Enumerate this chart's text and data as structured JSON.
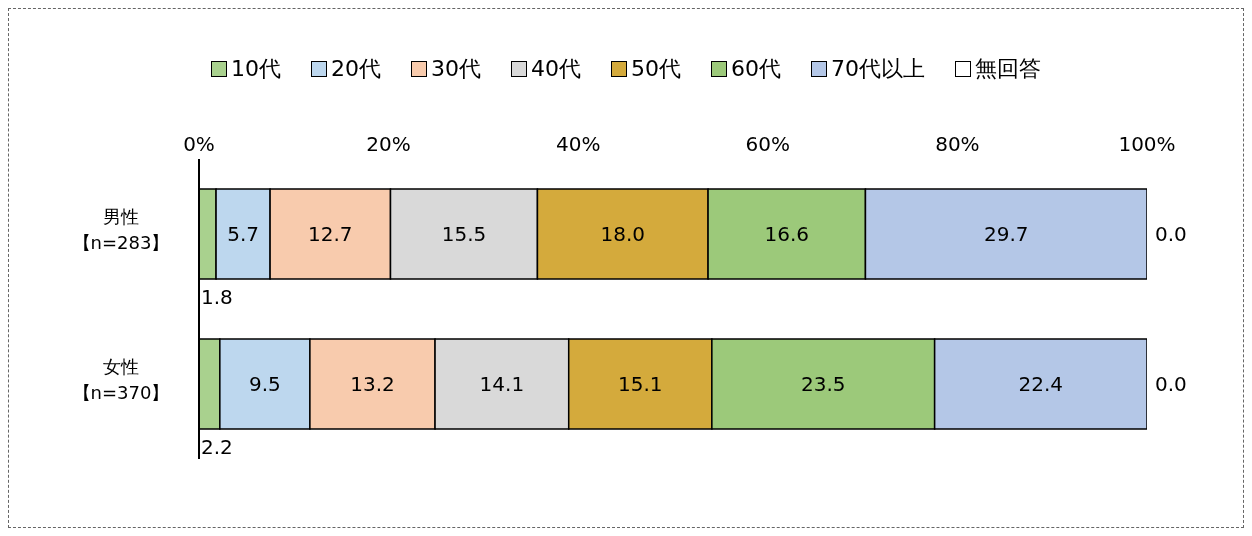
{
  "chart_data": {
    "type": "bar",
    "orientation": "horizontal",
    "stacked": true,
    "categories": [
      "男性【n=283】",
      "女性【n=370】"
    ],
    "series": [
      {
        "name": "10代",
        "color": "#a9d18e",
        "values": [
          1.8,
          2.2
        ],
        "value_labels": [
          "1.8",
          "2.2"
        ]
      },
      {
        "name": "20代",
        "color": "#bdd7ee",
        "values": [
          5.7,
          9.5
        ],
        "value_labels": [
          "5.7",
          "9.5"
        ]
      },
      {
        "name": "30代",
        "color": "#f8cbad",
        "values": [
          12.7,
          13.2
        ],
        "value_labels": [
          "12.7",
          "13.2"
        ]
      },
      {
        "name": "40代",
        "color": "#d9d9d9",
        "values": [
          15.5,
          14.1
        ],
        "value_labels": [
          "15.5",
          "14.1"
        ]
      },
      {
        "name": "50代",
        "color": "#d4aa3c",
        "values": [
          18.0,
          15.1
        ],
        "value_labels": [
          "18.0",
          "15.1"
        ]
      },
      {
        "name": "60代",
        "color": "#9cc97a",
        "values": [
          16.6,
          23.5
        ],
        "value_labels": [
          "16.6",
          "23.5"
        ]
      },
      {
        "name": "70代以上",
        "color": "#b4c7e7",
        "values": [
          29.7,
          22.4
        ],
        "value_labels": [
          "29.7",
          "22.4"
        ]
      },
      {
        "name": "無回答",
        "color": "#ffffff",
        "values": [
          0.0,
          0.0
        ],
        "value_labels": [
          "0.0",
          "0.0"
        ]
      }
    ],
    "xlim": [
      0,
      100
    ],
    "xticks": [
      {
        "value": 0,
        "label": "0%"
      },
      {
        "value": 20,
        "label": "20%"
      },
      {
        "value": 40,
        "label": "40%"
      },
      {
        "value": 60,
        "label": "60%"
      },
      {
        "value": 80,
        "label": "80%"
      },
      {
        "value": 100,
        "label": "100%"
      }
    ],
    "legend": "top",
    "grid": false
  }
}
